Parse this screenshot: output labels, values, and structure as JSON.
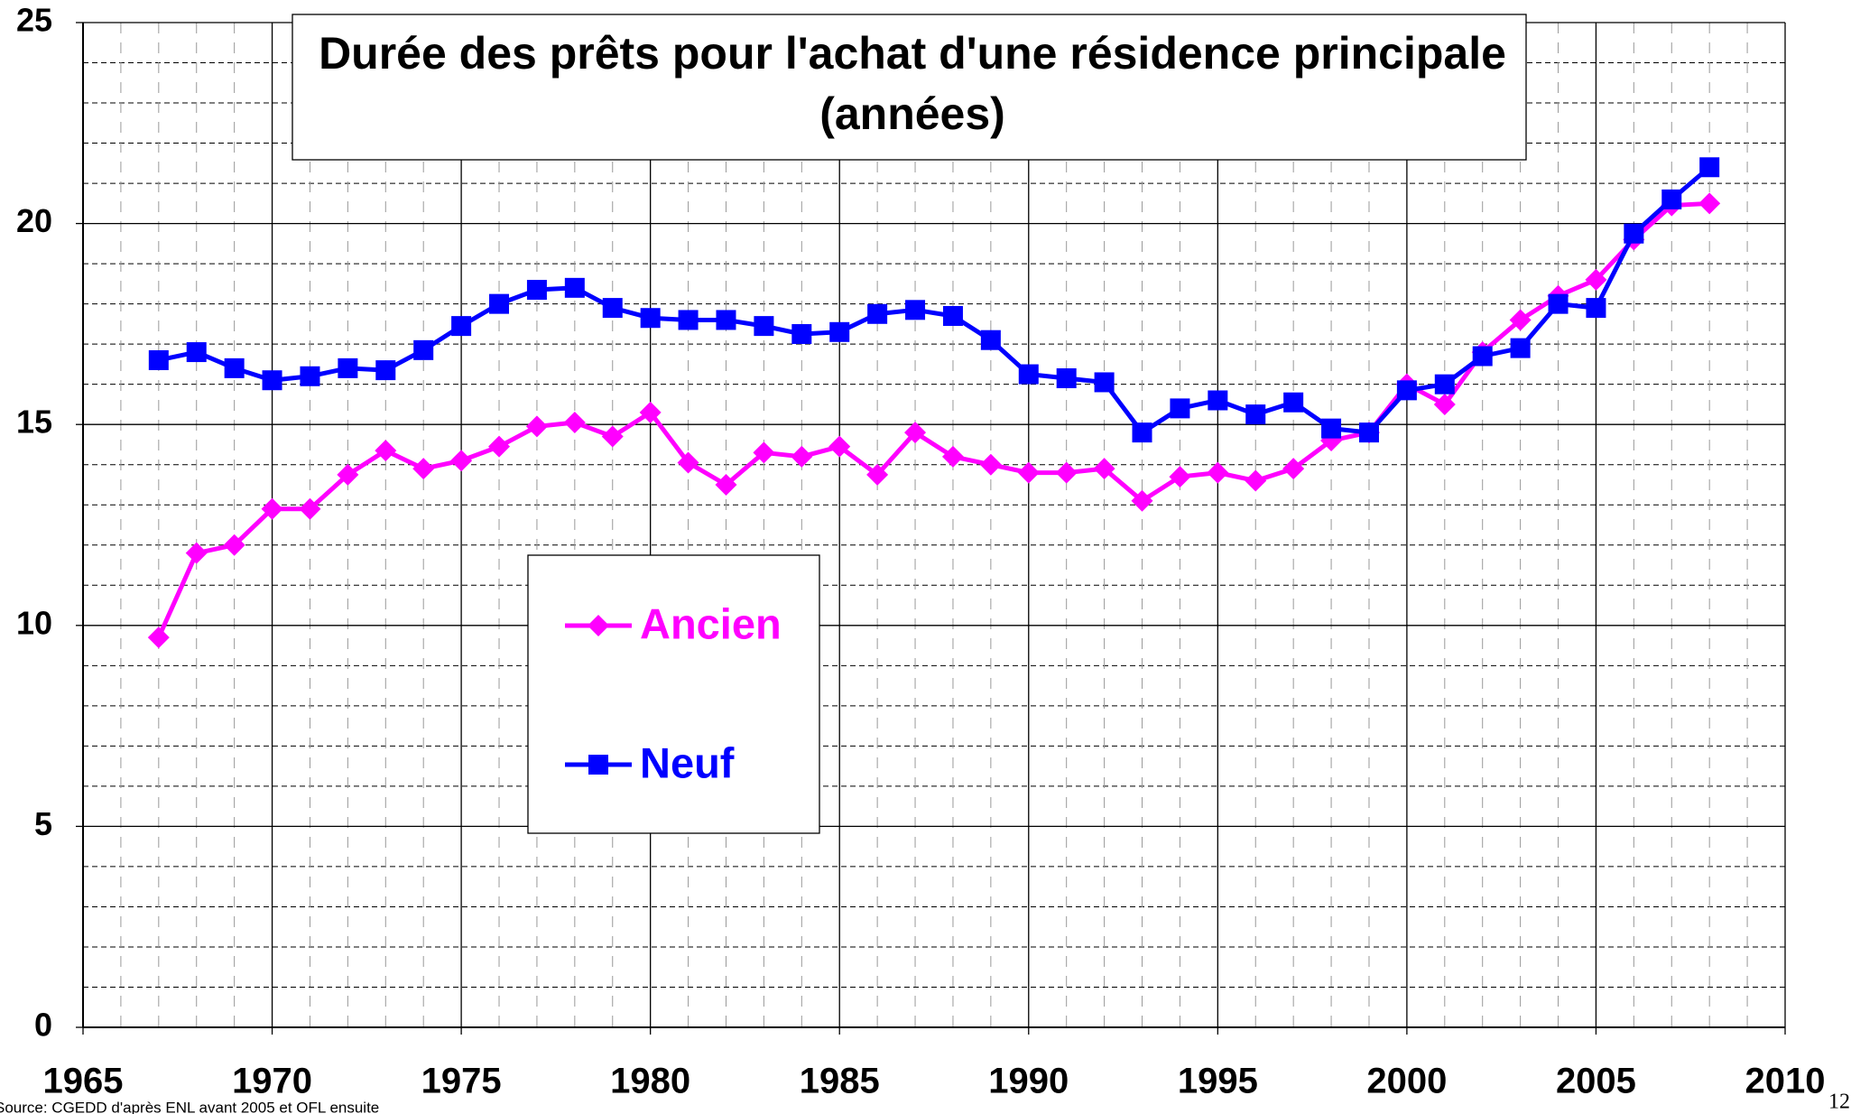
{
  "chart_data": {
    "type": "line",
    "title": [
      "Durée des prêts pour l'achat d'une résidence principale",
      "(années)"
    ],
    "source": "Source: CGEDD d'après ENL avant 2005 et OFL ensuite",
    "page_number": "12",
    "x": [
      1967,
      1968,
      1969,
      1970,
      1971,
      1972,
      1973,
      1974,
      1975,
      1976,
      1977,
      1978,
      1979,
      1980,
      1981,
      1982,
      1983,
      1984,
      1985,
      1986,
      1987,
      1988,
      1989,
      1990,
      1991,
      1992,
      1993,
      1994,
      1995,
      1996,
      1997,
      1998,
      1999,
      2000,
      2001,
      2002,
      2003,
      2004,
      2005,
      2006,
      2007,
      2008
    ],
    "series": [
      {
        "name": "Ancien",
        "color": "#ff00ff",
        "marker": "diamond",
        "values": [
          9.7,
          11.8,
          12.0,
          12.9,
          12.9,
          13.75,
          14.35,
          13.9,
          14.1,
          14.45,
          14.95,
          15.05,
          14.7,
          15.3,
          14.05,
          13.5,
          14.3,
          14.2,
          14.45,
          13.75,
          14.8,
          14.2,
          14.0,
          13.8,
          13.8,
          13.9,
          13.1,
          13.7,
          13.8,
          13.6,
          13.9,
          14.6,
          14.8,
          16.0,
          15.5,
          16.8,
          17.6,
          18.2,
          18.6,
          19.6,
          20.45,
          20.5
        ]
      },
      {
        "name": "Neuf",
        "color": "#0000ff",
        "marker": "square",
        "values": [
          16.6,
          16.8,
          16.4,
          16.1,
          16.2,
          16.4,
          16.35,
          16.85,
          17.45,
          18.0,
          18.35,
          18.4,
          17.9,
          17.65,
          17.6,
          17.6,
          17.45,
          17.25,
          17.3,
          17.75,
          17.85,
          17.7,
          17.1,
          16.25,
          16.15,
          16.05,
          14.8,
          15.4,
          15.6,
          15.25,
          15.55,
          14.9,
          14.8,
          15.85,
          16.0,
          16.7,
          16.9,
          18.0,
          17.9,
          19.75,
          20.6,
          21.4
        ]
      }
    ],
    "xlim": [
      1965,
      2010
    ],
    "xticks": [
      1965,
      1970,
      1975,
      1980,
      1985,
      1990,
      1995,
      2000,
      2005,
      2010
    ],
    "minor_xticks": [
      1966,
      1967,
      1968,
      1969,
      1971,
      1972,
      1973,
      1974,
      1976,
      1977,
      1978,
      1979,
      1981,
      1982,
      1983,
      1984,
      1986,
      1987,
      1988,
      1989,
      1991,
      1992,
      1993,
      1994,
      1996,
      1997,
      1998,
      1999,
      2001,
      2002,
      2003,
      2004,
      2006,
      2007,
      2008,
      2009
    ],
    "ylim": [
      0,
      25
    ],
    "yticks": [
      0,
      5,
      10,
      15,
      20,
      25
    ],
    "minor_yticks": [
      1,
      2,
      3,
      4,
      6,
      7,
      8,
      9,
      11,
      12,
      13,
      14,
      16,
      17,
      18,
      19,
      21,
      22,
      23,
      24
    ],
    "grid": true
  }
}
